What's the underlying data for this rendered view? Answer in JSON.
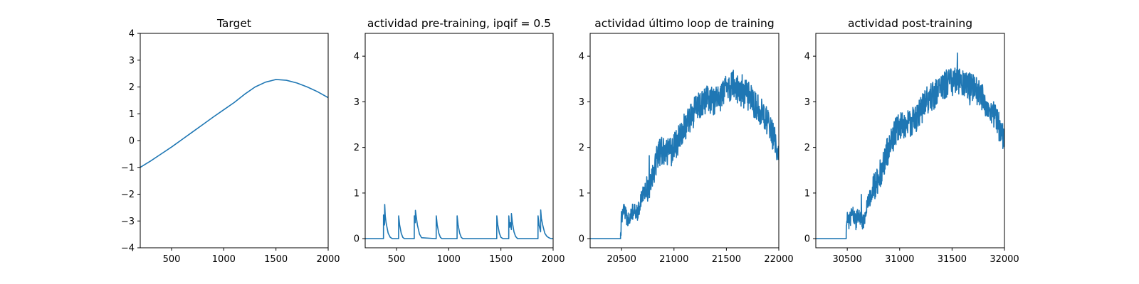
{
  "figure": {
    "background": "#ffffff",
    "line_color": "#1f77b4"
  },
  "chart_data": [
    {
      "type": "line",
      "title": "Target",
      "xlim": [
        200,
        2000
      ],
      "ylim": [
        -4,
        4
      ],
      "xticks": [
        500,
        1000,
        1500,
        2000
      ],
      "yticks": [
        -4,
        -3,
        -2,
        -1,
        0,
        1,
        2,
        3,
        4
      ],
      "xtick_labels": [
        "500",
        "1000",
        "1500",
        "2000"
      ],
      "ytick_labels": [
        "−4",
        "−3",
        "−2",
        "−1",
        "0",
        "1",
        "2",
        "3",
        "4"
      ],
      "series": [
        {
          "x": [
            200,
            300,
            400,
            500,
            600,
            700,
            800,
            900,
            1000,
            1100,
            1200,
            1300,
            1400,
            1500,
            1600,
            1700,
            1800,
            1900,
            2000
          ],
          "values": [
            -1.0,
            -0.76,
            -0.5,
            -0.24,
            0.04,
            0.32,
            0.6,
            0.88,
            1.15,
            1.42,
            1.73,
            2.0,
            2.18,
            2.28,
            2.25,
            2.15,
            2.0,
            1.82,
            1.6
          ]
        }
      ]
    },
    {
      "type": "line",
      "title": "actividad pre-training, ipqif = 0.5",
      "xlim": [
        200,
        2000
      ],
      "ylim": [
        -0.2,
        4.5
      ],
      "xticks": [
        500,
        1000,
        1500,
        2000
      ],
      "yticks": [
        0,
        1,
        2,
        3,
        4
      ],
      "xtick_labels": [
        "500",
        "1000",
        "1500",
        "2000"
      ],
      "ytick_labels": [
        "0",
        "1",
        "2",
        "3",
        "4"
      ],
      "series": [
        {
          "x": [
            200,
            375,
            375.5,
            385,
            387,
            392,
            400,
            420,
            440,
            460,
            520,
            520.5,
            530,
            545,
            560,
            575,
            670,
            670.5,
            680,
            681,
            688,
            700,
            720,
            740,
            880,
            880.5,
            890,
            905,
            920,
            935,
            1080,
            1080.5,
            1090,
            1105,
            1120,
            1135,
            1460,
            1460.5,
            1470,
            1485,
            1500,
            1520,
            1575,
            1575.5,
            1583,
            1590,
            1600,
            1600.5,
            1610,
            1625,
            1640,
            1660,
            1855,
            1855.5,
            1865,
            1880,
            1881,
            1887,
            1900,
            1920,
            1940,
            1960,
            1980,
            2000
          ],
          "values": [
            0,
            0,
            0.52,
            0.3,
            0.75,
            0.5,
            0.35,
            0.12,
            0.03,
            0,
            0,
            0.5,
            0.3,
            0.12,
            0.03,
            0,
            0,
            0.5,
            0.35,
            0.62,
            0.5,
            0.3,
            0.1,
            0.02,
            0,
            0.5,
            0.3,
            0.12,
            0.03,
            0,
            0,
            0.5,
            0.3,
            0.12,
            0.03,
            0,
            0,
            0.5,
            0.3,
            0.12,
            0.03,
            0,
            0,
            0.5,
            0.25,
            0.35,
            0.2,
            0.55,
            0.35,
            0.15,
            0.05,
            0,
            0,
            0.5,
            0.3,
            0.15,
            0.63,
            0.45,
            0.3,
            0.12,
            0.05,
            0.02,
            0,
            0
          ]
        }
      ]
    },
    {
      "type": "line",
      "title": "actividad último loop de training",
      "xlim": [
        20200,
        22000
      ],
      "ylim": [
        -0.2,
        4.5
      ],
      "xticks": [
        20500,
        21000,
        21500,
        22000
      ],
      "yticks": [
        0,
        1,
        2,
        3,
        4
      ],
      "xtick_labels": [
        "20500",
        "21000",
        "21500",
        "22000"
      ],
      "ytick_labels": [
        "0",
        "1",
        "2",
        "3",
        "4"
      ],
      "series": [
        {
          "x": [
            20200,
            20490,
            20500,
            20520,
            20550,
            20580,
            20600,
            20650,
            20700,
            20750,
            20800,
            20850,
            20900,
            20950,
            21000,
            21050,
            21100,
            21150,
            21200,
            21250,
            21300,
            21350,
            21400,
            21450,
            21500,
            21550,
            21600,
            21650,
            21700,
            21750,
            21800,
            21850,
            21900,
            21950,
            22000
          ],
          "values": [
            0,
            0,
            0.5,
            0.6,
            0.45,
            0.5,
            0.6,
            0.55,
            1.0,
            1.1,
            1.45,
            1.9,
            1.95,
            1.9,
            2.0,
            2.2,
            2.45,
            2.6,
            2.8,
            2.95,
            3.05,
            3.0,
            3.05,
            3.1,
            3.3,
            3.35,
            3.3,
            3.2,
            3.15,
            3.0,
            2.9,
            2.7,
            2.5,
            2.2,
            1.95
          ]
        }
      ]
    },
    {
      "type": "line",
      "title": "actividad post-training",
      "xlim": [
        30200,
        32000
      ],
      "ylim": [
        -0.2,
        4.5
      ],
      "xticks": [
        30500,
        31000,
        31500,
        32000
      ],
      "yticks": [
        0,
        1,
        2,
        3,
        4
      ],
      "xtick_labels": [
        "30500",
        "31000",
        "31500",
        "32000"
      ],
      "ytick_labels": [
        "0",
        "1",
        "2",
        "3",
        "4"
      ],
      "series": [
        {
          "x": [
            30200,
            30490,
            30500,
            30520,
            30550,
            30580,
            30600,
            30650,
            30700,
            30750,
            30800,
            30850,
            30900,
            30950,
            31000,
            31050,
            31100,
            31150,
            31200,
            31250,
            31300,
            31350,
            31400,
            31450,
            31500,
            31550,
            31600,
            31650,
            31700,
            31750,
            31800,
            31850,
            31900,
            31950,
            32000
          ],
          "values": [
            0,
            0,
            0.5,
            0.35,
            0.6,
            0.35,
            0.5,
            0.35,
            0.8,
            1.1,
            1.3,
            1.7,
            2.0,
            2.3,
            2.5,
            2.45,
            2.55,
            2.6,
            2.8,
            3.0,
            3.1,
            3.2,
            3.35,
            3.4,
            3.45,
            3.5,
            3.4,
            3.35,
            3.3,
            3.2,
            3.05,
            2.9,
            2.7,
            2.45,
            2.2
          ]
        }
      ]
    }
  ]
}
